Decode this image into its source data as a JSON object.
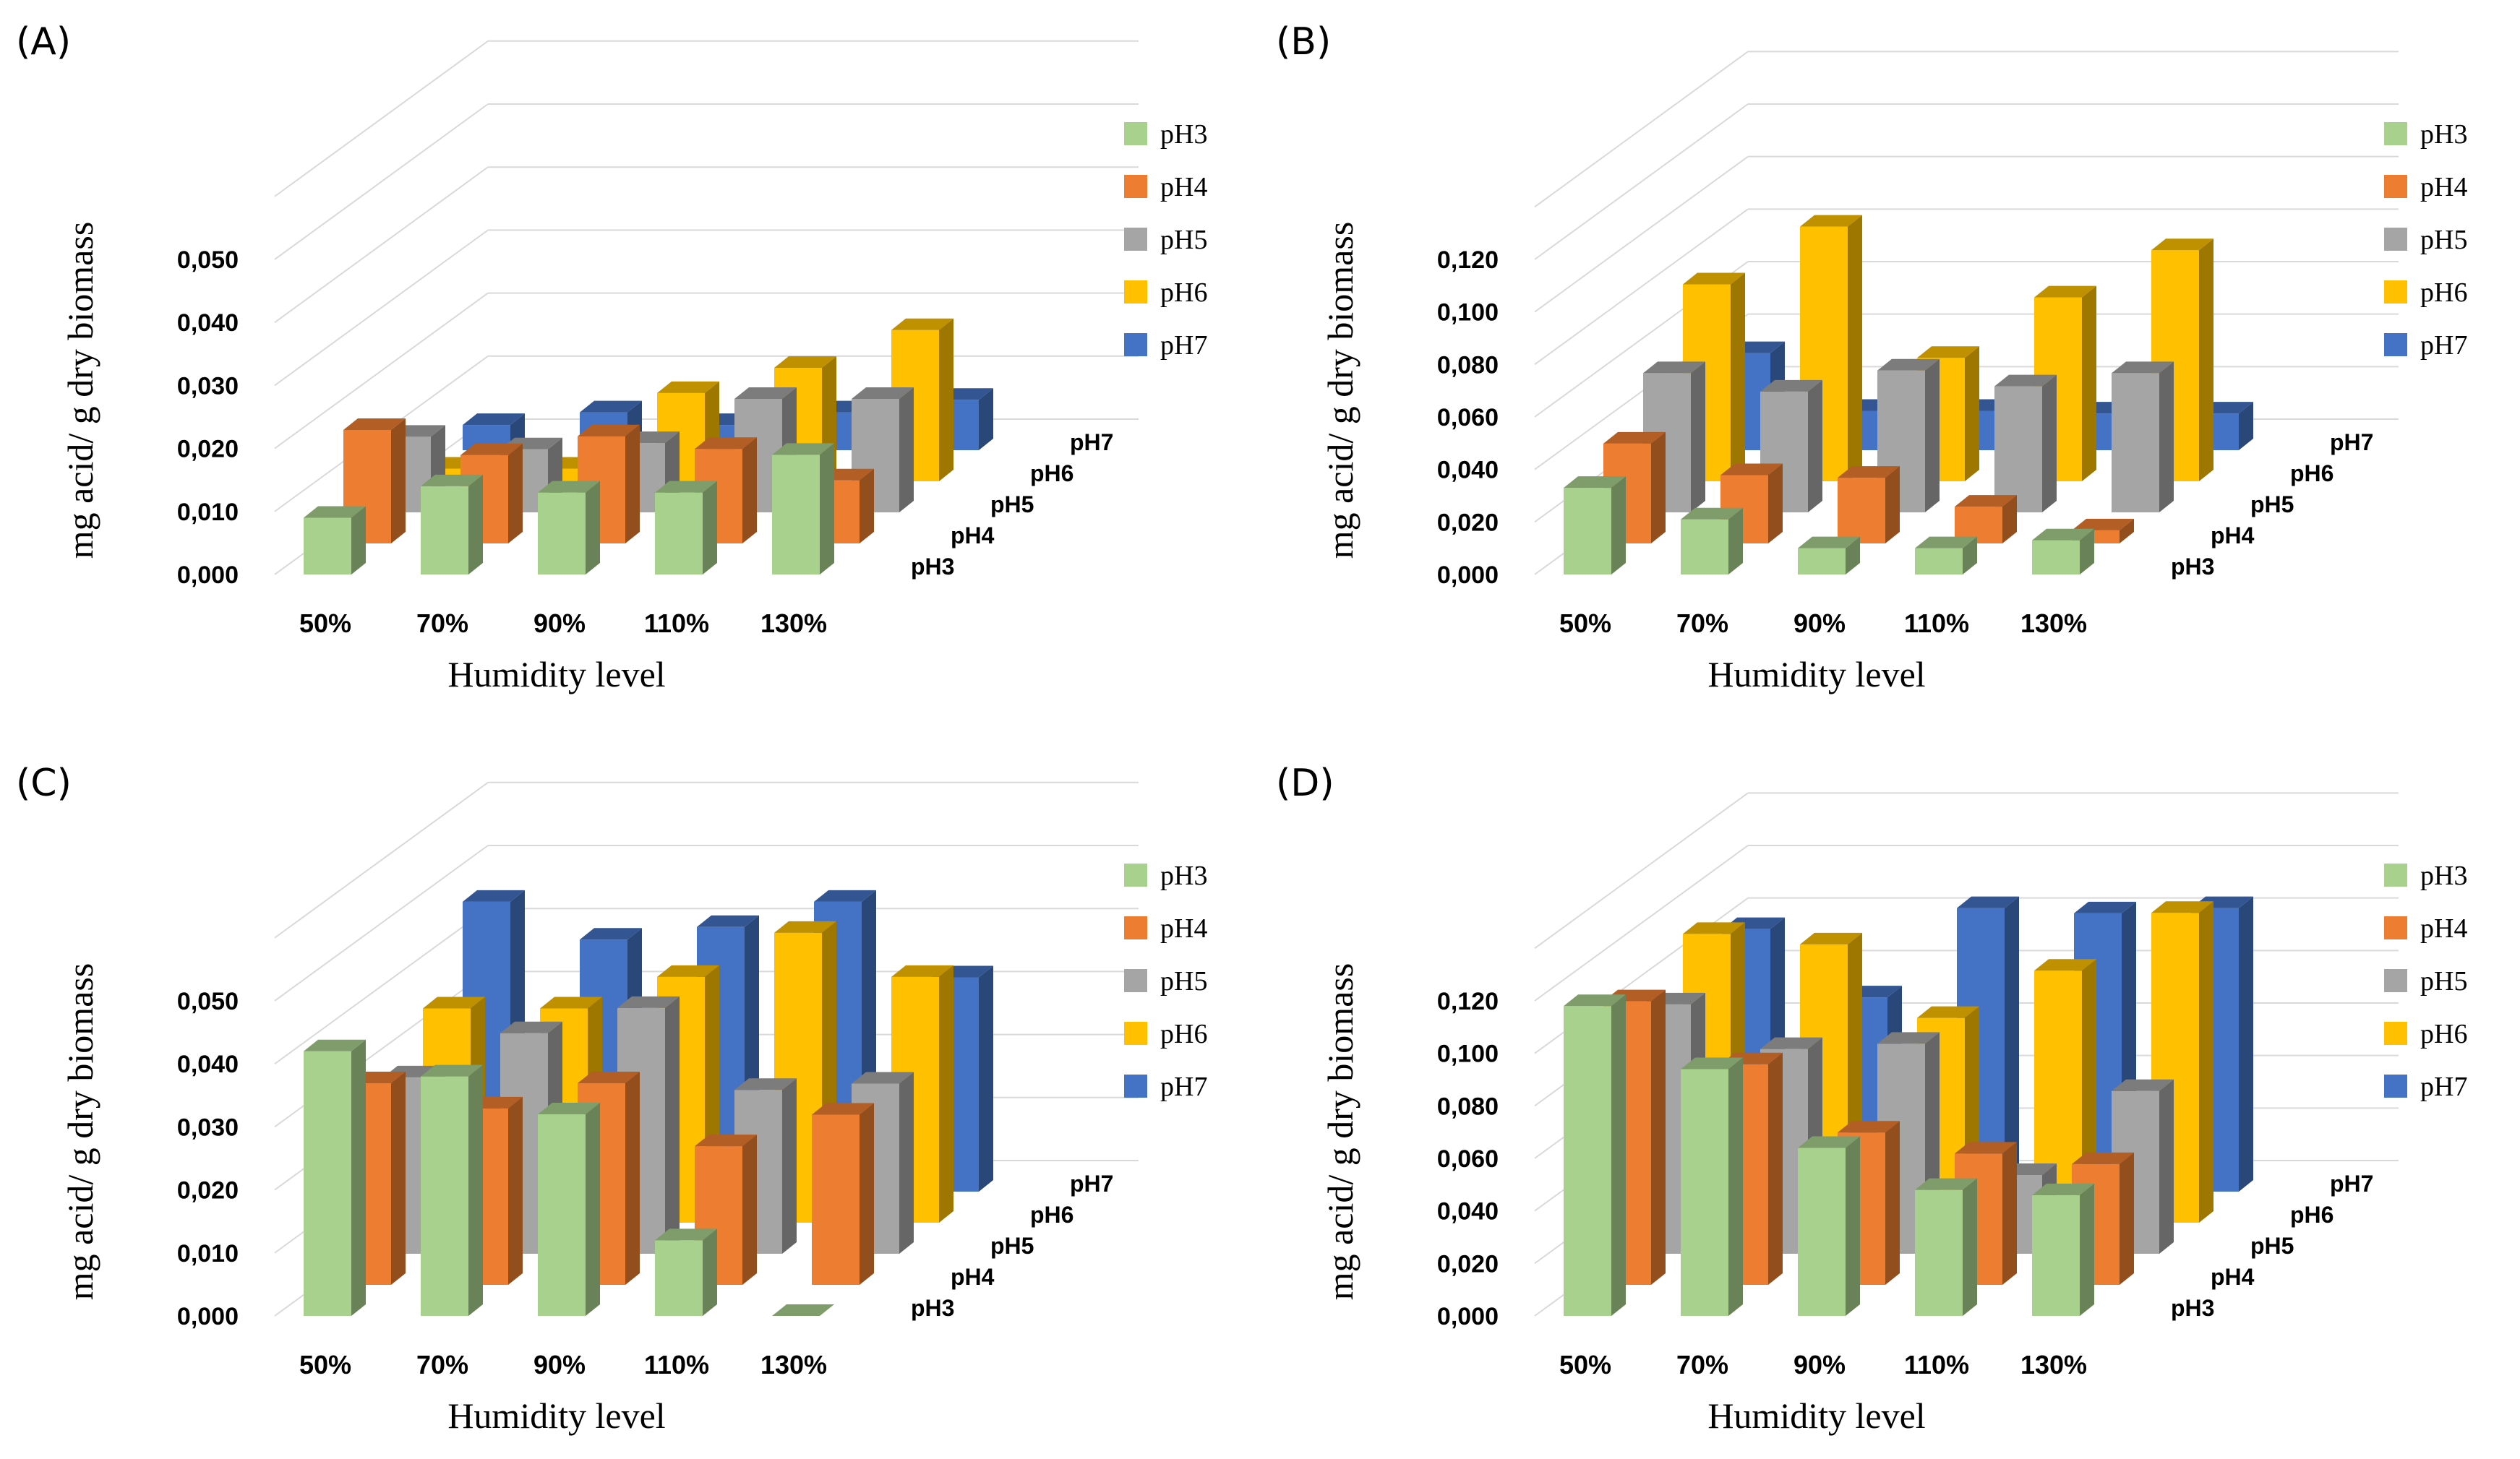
{
  "colors": {
    "pH3": "#a9d18e",
    "pH4": "#ed7d31",
    "pH5": "#a5a5a5",
    "pH6": "#ffc000",
    "pH7": "#4472c4"
  },
  "chart_data": [
    {
      "panel": "(A)",
      "type": "bar",
      "xlabel": "Humidity  level",
      "ylabel": "mg acid/ g dry biomass",
      "categories": [
        "50%",
        "70%",
        "90%",
        "110%",
        "130%"
      ],
      "depth_labels": [
        "pH3",
        "pH4",
        "pH5",
        "pH6",
        "pH7"
      ],
      "yticks": [
        "0,000",
        "0,010",
        "0,020",
        "0,030",
        "0,040",
        "0,050"
      ],
      "ylim": [
        0,
        0.05
      ],
      "series": [
        {
          "name": "pH3",
          "values": [
            0.009,
            0.014,
            0.013,
            0.013,
            0.019
          ]
        },
        {
          "name": "pH4",
          "values": [
            0.018,
            0.014,
            0.017,
            0.015,
            0.01
          ]
        },
        {
          "name": "pH5",
          "values": [
            0.012,
            0.01,
            0.011,
            0.018,
            0.018
          ]
        },
        {
          "name": "pH6",
          "values": [
            0.002,
            0.002,
            0.014,
            0.018,
            0.024
          ]
        },
        {
          "name": "pH7",
          "values": [
            0.004,
            0.006,
            0.004,
            0.006,
            0.008
          ]
        }
      ]
    },
    {
      "panel": "(B)",
      "type": "bar",
      "xlabel": "Humidity  level",
      "ylabel": "mg acid/ g dry biomass",
      "categories": [
        "50%",
        "70%",
        "90%",
        "110%",
        "130%"
      ],
      "depth_labels": [
        "pH3",
        "pH4",
        "pH5",
        "pH6",
        "pH7"
      ],
      "yticks": [
        "0,000",
        "0,020",
        "0,040",
        "0,060",
        "0,080",
        "0,100",
        "0,120"
      ],
      "ylim": [
        0,
        0.12
      ],
      "series": [
        {
          "name": "pH3",
          "values": [
            0.033,
            0.021,
            0.01,
            0.01,
            0.013
          ]
        },
        {
          "name": "pH4",
          "values": [
            0.038,
            0.026,
            0.025,
            0.014,
            0.005
          ]
        },
        {
          "name": "pH5",
          "values": [
            0.053,
            0.046,
            0.054,
            0.048,
            0.053
          ]
        },
        {
          "name": "pH6",
          "values": [
            0.075,
            0.097,
            0.047,
            0.07,
            0.088
          ]
        },
        {
          "name": "pH7",
          "values": [
            0.037,
            0.015,
            0.015,
            0.014,
            0.014
          ]
        }
      ]
    },
    {
      "panel": "(C)",
      "type": "bar",
      "xlabel": "Humidity  level",
      "ylabel": "mg acid/ g dry biomass",
      "categories": [
        "50%",
        "70%",
        "90%",
        "110%",
        "130%"
      ],
      "depth_labels": [
        "pH3",
        "pH4",
        "pH5",
        "pH6",
        "pH7"
      ],
      "yticks": [
        "0,000",
        "0,010",
        "0,020",
        "0,030",
        "0,040",
        "0,050"
      ],
      "ylim": [
        0,
        0.05
      ],
      "series": [
        {
          "name": "pH3",
          "values": [
            0.042,
            0.038,
            0.032,
            0.012,
            0.0
          ]
        },
        {
          "name": "pH4",
          "values": [
            0.032,
            0.028,
            0.032,
            0.022,
            0.027
          ]
        },
        {
          "name": "pH5",
          "values": [
            0.028,
            0.035,
            0.039,
            0.026,
            0.027
          ]
        },
        {
          "name": "pH6",
          "values": [
            0.034,
            0.034,
            0.039,
            0.046,
            0.039
          ]
        },
        {
          "name": "pH7",
          "values": [
            0.046,
            0.04,
            0.042,
            0.046,
            0.034
          ]
        }
      ]
    },
    {
      "panel": "(D)",
      "type": "bar",
      "xlabel": "Humidity  level",
      "ylabel": "mg acid/ g dry biomass",
      "categories": [
        "50%",
        "70%",
        "90%",
        "110%",
        "130%"
      ],
      "depth_labels": [
        "pH3",
        "pH4",
        "pH5",
        "pH6",
        "pH7"
      ],
      "yticks": [
        "0,000",
        "0,020",
        "0,040",
        "0,060",
        "0,080",
        "0,100",
        "0,120"
      ],
      "ylim": [
        0,
        0.12
      ],
      "series": [
        {
          "name": "pH3",
          "values": [
            0.118,
            0.094,
            0.064,
            0.048,
            0.046
          ]
        },
        {
          "name": "pH4",
          "values": [
            0.108,
            0.084,
            0.058,
            0.05,
            0.046
          ]
        },
        {
          "name": "pH5",
          "values": [
            0.095,
            0.078,
            0.08,
            0.03,
            0.062
          ]
        },
        {
          "name": "pH6",
          "values": [
            0.11,
            0.106,
            0.078,
            0.096,
            0.118
          ]
        },
        {
          "name": "pH7",
          "values": [
            0.1,
            0.074,
            0.108,
            0.106,
            0.108
          ]
        }
      ]
    }
  ]
}
